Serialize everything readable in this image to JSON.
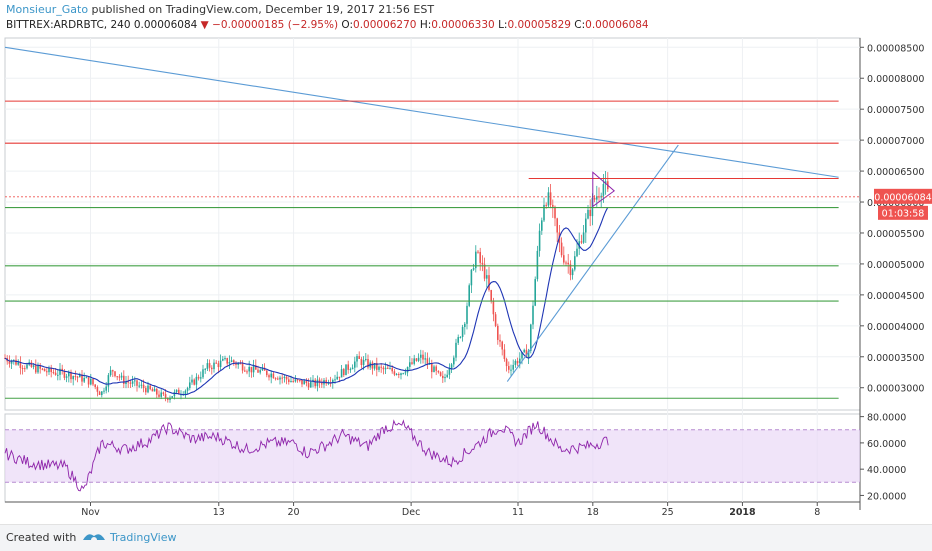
{
  "header": {
    "author": "Monsieur_Gato",
    "published": " published on TradingView.com, December 19, 2017 21:56 EST"
  },
  "ohlc": {
    "symbol": "BITTREX:ARDRBTC, 240",
    "last": "0.00006084",
    "change": "−0.00000185 (−2.95%)",
    "o_label": "O:",
    "o": "0.00006270",
    "h_label": "H:",
    "h": "0.00006330",
    "l_label": "L:",
    "l": "0.00005829",
    "c_label": "C:",
    "c": "0.00006084"
  },
  "footer": {
    "created": "Created with",
    "brand": "TradingView"
  },
  "colors": {
    "up": "#26a69a",
    "down": "#ef5350",
    "ma": "#1e35b4",
    "rsi": "#8e24aa",
    "trend": "#5b9bd5",
    "resistance": "#e53935",
    "support": "#43a047"
  },
  "chart_data": [
    {
      "type": "candlestick",
      "title": "",
      "ylim": [
        2.64e-05,
        8.65e-05
      ],
      "y_ticks": [
        "0.00008500",
        "0.00008000",
        "0.00007500",
        "0.00007000",
        "0.00006500",
        "0.00006000",
        "0.00005500",
        "0.00005000",
        "0.00004500",
        "0.00004000",
        "0.00003500",
        "0.00003000"
      ],
      "x_ticks": [
        "Nov",
        "13",
        "20",
        "Dec",
        "11",
        "18",
        "25",
        "2018",
        "8"
      ],
      "x_dates": [
        "2017-11-01",
        "2017-11-13",
        "2017-11-20",
        "2017-12-01",
        "2017-12-11",
        "2017-12-18",
        "2017-12-25",
        "2018-01-01",
        "2018-01-08"
      ],
      "price_label": "0.00006084",
      "countdown_label": "01:03:58",
      "close_series": [
        [
          "2017-10-24",
          3.48e-05
        ],
        [
          "2017-10-26",
          3.35e-05
        ],
        [
          "2017-10-28",
          3.26e-05
        ],
        [
          "2017-10-30",
          3.22e-05
        ],
        [
          "2017-11-01",
          3.1e-05
        ],
        [
          "2017-11-02",
          2.9e-05
        ],
        [
          "2017-11-03",
          3.3e-05
        ],
        [
          "2017-11-04",
          3.12e-05
        ],
        [
          "2017-11-06",
          3e-05
        ],
        [
          "2017-11-08",
          2.84e-05
        ],
        [
          "2017-11-10",
          2.98e-05
        ],
        [
          "2017-11-12",
          3.34e-05
        ],
        [
          "2017-11-14",
          3.44e-05
        ],
        [
          "2017-11-16",
          3.3e-05
        ],
        [
          "2017-11-18",
          3.22e-05
        ],
        [
          "2017-11-20",
          3.1e-05
        ],
        [
          "2017-11-22",
          3.06e-05
        ],
        [
          "2017-11-24",
          3.18e-05
        ],
        [
          "2017-11-26",
          3.45e-05
        ],
        [
          "2017-11-28",
          3.3e-05
        ],
        [
          "2017-11-30",
          3.25e-05
        ],
        [
          "2017-12-02",
          3.5e-05
        ],
        [
          "2017-12-03",
          3.3e-05
        ],
        [
          "2017-12-04",
          3.1e-05
        ],
        [
          "2017-12-05",
          3.55e-05
        ],
        [
          "2017-12-06",
          4.1e-05
        ],
        [
          "2017-12-07",
          5.2e-05
        ],
        [
          "2017-12-08",
          4.8e-05
        ],
        [
          "2017-12-09",
          3.9e-05
        ],
        [
          "2017-12-10",
          3.3e-05
        ],
        [
          "2017-12-11",
          3.45e-05
        ],
        [
          "2017-12-12",
          3.6e-05
        ],
        [
          "2017-12-13",
          5.5e-05
        ],
        [
          "2017-12-13T12",
          6.1e-05
        ],
        [
          "2017-12-14",
          6e-05
        ],
        [
          "2017-12-15",
          5.2e-05
        ],
        [
          "2017-12-16",
          4.9e-05
        ],
        [
          "2017-12-17",
          5.5e-05
        ],
        [
          "2017-12-18",
          6e-05
        ],
        [
          "2017-12-19",
          6.3e-05
        ],
        [
          "2017-12-19T12",
          6.08e-05
        ]
      ],
      "lines": [
        {
          "kind": "trendline",
          "from": [
            "2017-10-24",
            8.5e-05
          ],
          "to": [
            "2018-01-10",
            6.4e-05
          ]
        },
        {
          "kind": "trendline",
          "from": [
            "2017-12-10",
            3.1e-05
          ],
          "to": [
            "2017-12-26",
            6.92e-05
          ]
        },
        {
          "kind": "resistance",
          "from": [
            "2017-10-24",
            7.63e-05
          ],
          "to": [
            "2018-01-10",
            7.63e-05
          ]
        },
        {
          "kind": "resistance",
          "from": [
            "2017-10-24",
            6.95e-05
          ],
          "to": [
            "2018-01-10",
            6.95e-05
          ]
        },
        {
          "kind": "resistance",
          "from": [
            "2017-12-12",
            6.38e-05
          ],
          "to": [
            "2018-01-10",
            6.38e-05
          ]
        },
        {
          "kind": "support",
          "from": [
            "2017-10-24",
            5.91e-05
          ],
          "to": [
            "2018-01-10",
            5.91e-05
          ]
        },
        {
          "kind": "support",
          "from": [
            "2017-10-24",
            4.97e-05
          ],
          "to": [
            "2018-01-10",
            4.97e-05
          ]
        },
        {
          "kind": "support",
          "from": [
            "2017-10-24",
            4.4e-05
          ],
          "to": [
            "2018-01-10",
            4.4e-05
          ]
        },
        {
          "kind": "support",
          "from": [
            "2017-10-24",
            2.83e-05
          ],
          "to": [
            "2018-01-10",
            2.83e-05
          ]
        }
      ],
      "pennant": [
        [
          "2017-12-18",
          6.48e-05
        ],
        [
          "2017-12-20",
          6.18e-05
        ],
        [
          "2017-12-18",
          5.93e-05
        ]
      ]
    },
    {
      "type": "line",
      "title": "",
      "ylim": [
        15,
        82
      ],
      "y_ticks": [
        "80.0000",
        "60.0000",
        "40.0000",
        "20.0000"
      ],
      "band": [
        30,
        70
      ],
      "series_values": [
        [
          0,
          52
        ],
        [
          0.04,
          45
        ],
        [
          0.07,
          43
        ],
        [
          0.1,
          42
        ],
        [
          0.13,
          23
        ],
        [
          0.16,
          60
        ],
        [
          0.2,
          55
        ],
        [
          0.24,
          62
        ],
        [
          0.27,
          72
        ],
        [
          0.31,
          63
        ],
        [
          0.35,
          65
        ],
        [
          0.4,
          55
        ],
        [
          0.44,
          60
        ],
        [
          0.48,
          60
        ],
        [
          0.5,
          52
        ],
        [
          0.53,
          58
        ],
        [
          0.56,
          66
        ],
        [
          0.6,
          57
        ],
        [
          0.63,
          72
        ],
        [
          0.66,
          73
        ],
        [
          0.7,
          53
        ],
        [
          0.74,
          45
        ],
        [
          0.78,
          58
        ],
        [
          0.82,
          73
        ],
        [
          0.85,
          60
        ],
        [
          0.88,
          75
        ],
        [
          0.92,
          55
        ],
        [
          0.96,
          57
        ],
        [
          1,
          62
        ]
      ]
    }
  ]
}
